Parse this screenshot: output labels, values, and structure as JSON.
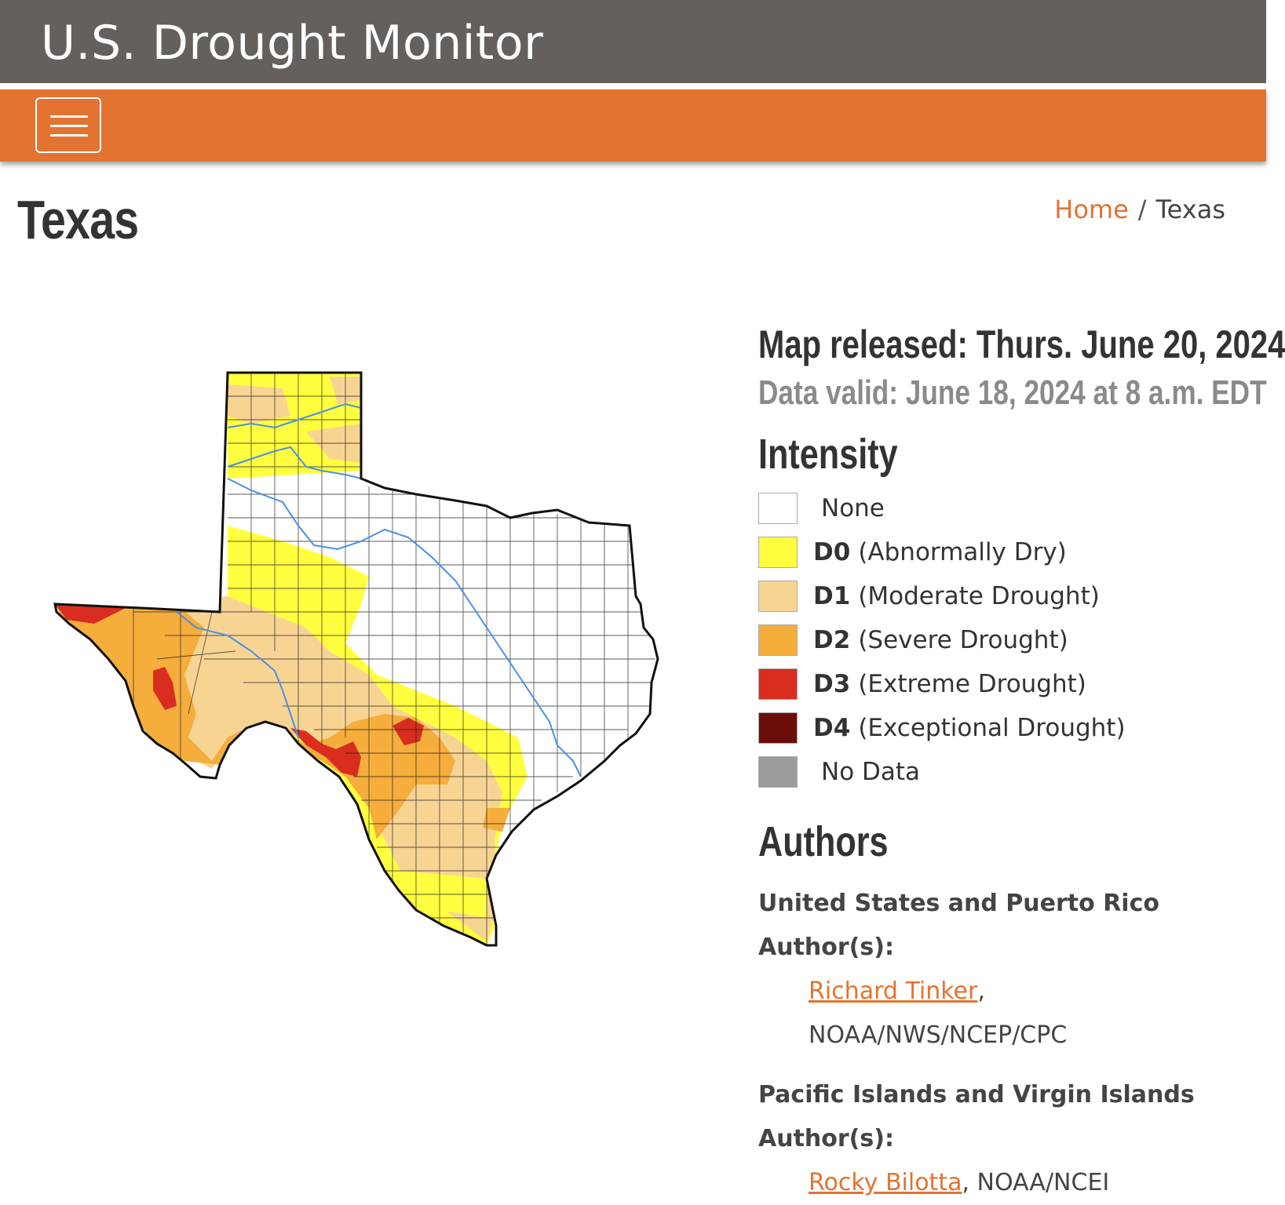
{
  "header": {
    "site_title": "U.S. Drought Monitor"
  },
  "navbar": {
    "menu_icon": "hamburger-menu-icon"
  },
  "page": {
    "title": "Texas"
  },
  "breadcrumb": {
    "home": "Home",
    "separator": "/",
    "current": "Texas"
  },
  "map": {
    "released": "Map released: Thurs. June 20, 2024",
    "valid": "Data valid: June 18, 2024 at 8 a.m. EDT"
  },
  "intensity": {
    "heading": "Intensity",
    "items": [
      {
        "code": "",
        "label": "None",
        "color": "#ffffff"
      },
      {
        "code": "D0",
        "label": "(Abnormally Dry)",
        "color": "#ffff3f"
      },
      {
        "code": "D1",
        "label": "(Moderate Drought)",
        "color": "#f8d493"
      },
      {
        "code": "D2",
        "label": "(Severe Drought)",
        "color": "#f5ad3c"
      },
      {
        "code": "D3",
        "label": "(Extreme Drought)",
        "color": "#d82d1f"
      },
      {
        "code": "D4",
        "label": "(Exceptional Drought)",
        "color": "#6b0e0a"
      },
      {
        "code": "",
        "label": "No Data",
        "color": "#9b9b9b"
      }
    ]
  },
  "authors": {
    "heading": "Authors",
    "groups": [
      {
        "title": "United States and Puerto Rico Author(s):",
        "name": "Richard Tinker",
        "suffix": ",",
        "org": "NOAA/NWS/NCEP/CPC"
      },
      {
        "title": "Pacific Islands and Virgin Islands Author(s):",
        "name": "Rocky Bilotta",
        "suffix": ", NOAA/NCEI",
        "org": ""
      }
    ]
  },
  "colors": {
    "header_bg": "#65605c",
    "nav_bg": "#e37330",
    "link": "#e37330"
  }
}
